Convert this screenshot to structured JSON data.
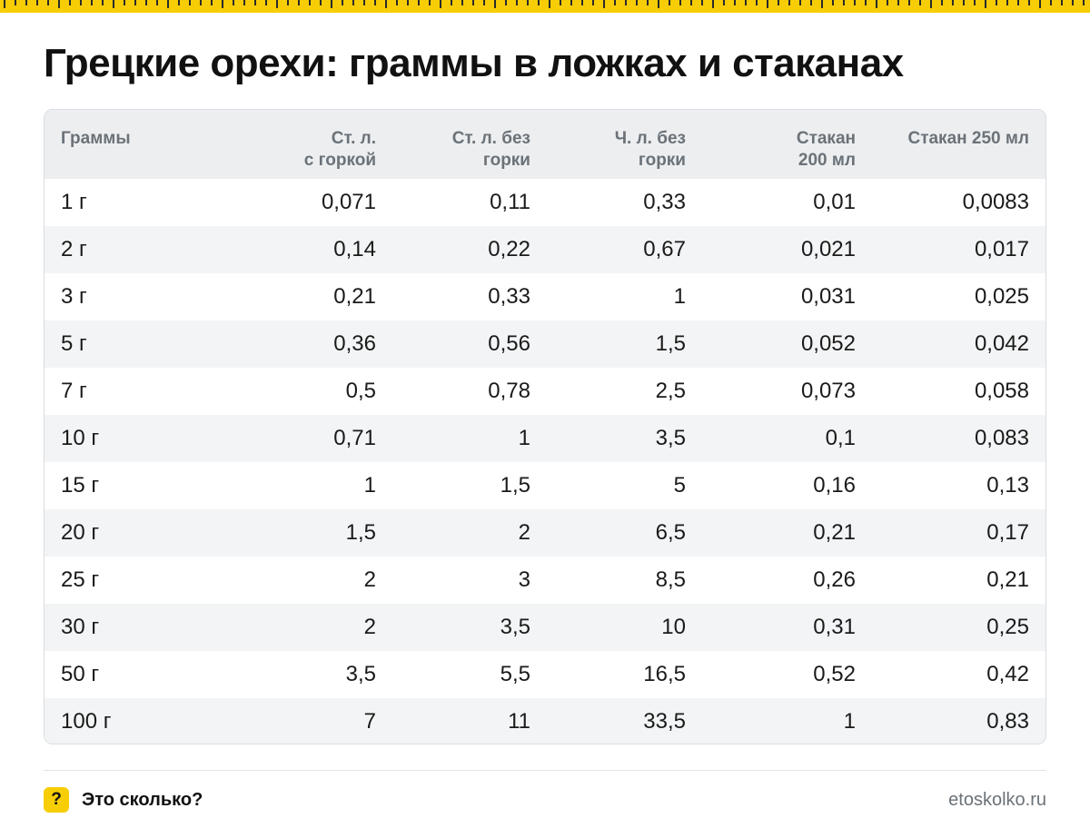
{
  "title": "Грецкие орехи: граммы в ложках и стаканах",
  "table": {
    "headers": [
      [
        "Граммы"
      ],
      [
        "Ст. л.",
        "с горкой"
      ],
      [
        "Ст. л. без",
        "горки"
      ],
      [
        "Ч. л. без",
        "горки"
      ],
      [
        "Стакан",
        "200 мл"
      ],
      [
        "Стакан 250 мл"
      ]
    ],
    "rows": [
      [
        "1 г",
        "0,071",
        "0,11",
        "0,33",
        "0,01",
        "0,0083"
      ],
      [
        "2 г",
        "0,14",
        "0,22",
        "0,67",
        "0,021",
        "0,017"
      ],
      [
        "3 г",
        "0,21",
        "0,33",
        "1",
        "0,031",
        "0,025"
      ],
      [
        "5 г",
        "0,36",
        "0,56",
        "1,5",
        "0,052",
        "0,042"
      ],
      [
        "7 г",
        "0,5",
        "0,78",
        "2,5",
        "0,073",
        "0,058"
      ],
      [
        "10 г",
        "0,71",
        "1",
        "3,5",
        "0,1",
        "0,083"
      ],
      [
        "15 г",
        "1",
        "1,5",
        "5",
        "0,16",
        "0,13"
      ],
      [
        "20 г",
        "1,5",
        "2",
        "6,5",
        "0,21",
        "0,17"
      ],
      [
        "25 г",
        "2",
        "3",
        "8,5",
        "0,26",
        "0,21"
      ],
      [
        "30 г",
        "2",
        "3,5",
        "10",
        "0,31",
        "0,25"
      ],
      [
        "50 г",
        "3,5",
        "5,5",
        "16,5",
        "0,52",
        "0,42"
      ],
      [
        "100 г",
        "7",
        "11",
        "33,5",
        "1",
        "0,83"
      ]
    ]
  },
  "footer": {
    "badge": "?",
    "brand": "Это сколько?",
    "site": "etoskolko.ru"
  },
  "colors": {
    "accent": "#f7cd05",
    "header_bg": "#eceef0",
    "stripe_bg": "#f3f4f5",
    "muted_text": "#6b7278"
  },
  "icons": {
    "ruler": "ruler-tick-strip-icon"
  }
}
